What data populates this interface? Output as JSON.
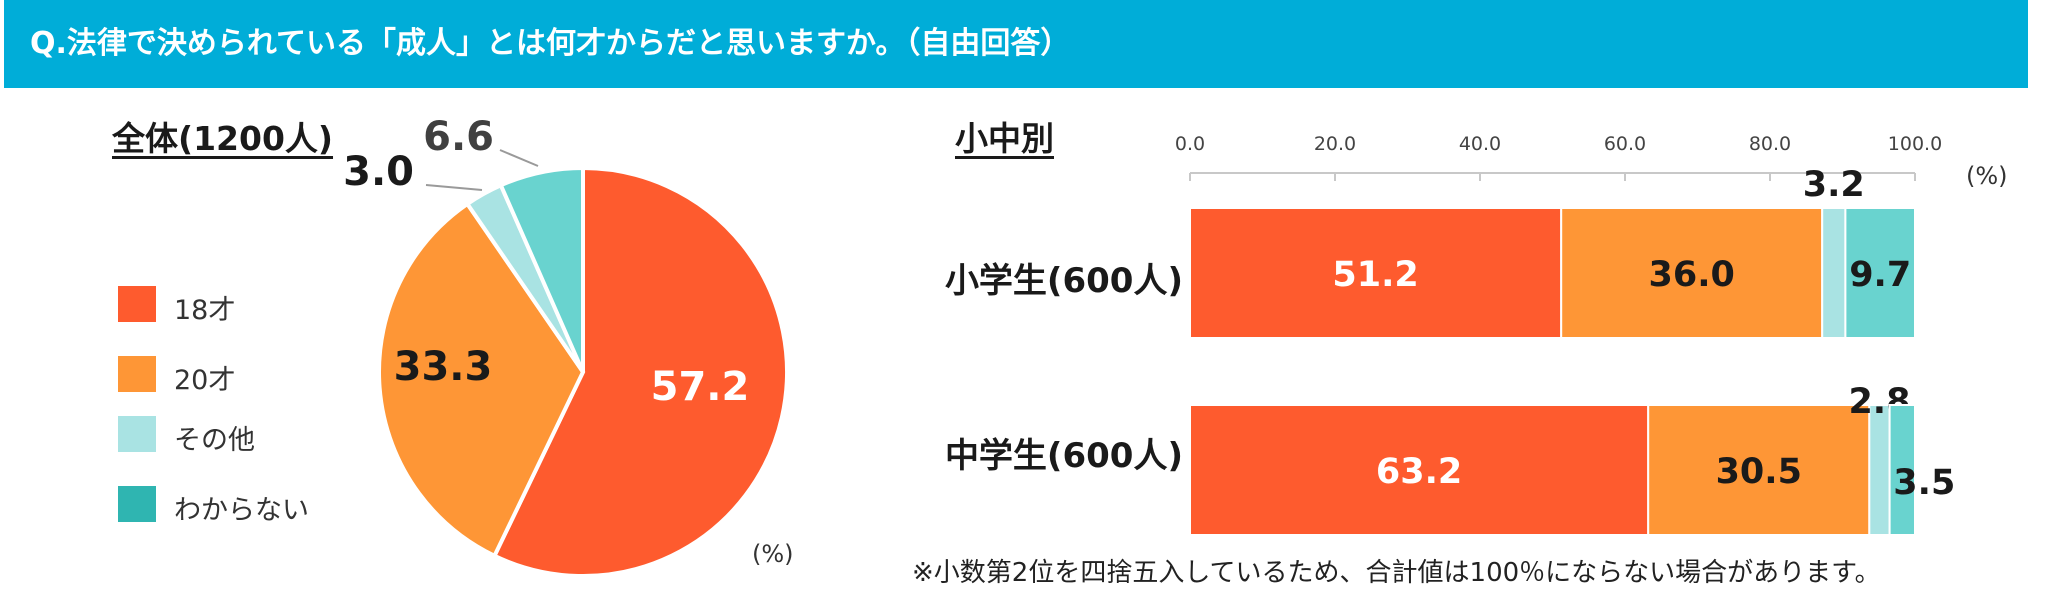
{
  "header": {
    "question": "Q.法律で決められている「成人」とは何才からだと思いますか。（自由回答）"
  },
  "colors": {
    "header_bg": "#00add8",
    "series": [
      "#fe5b2e",
      "#fe9636",
      "#a9e3e3",
      "#69d3cf"
    ],
    "legend": [
      "#fe5b2e",
      "#fe9636",
      "#a9e3e3",
      "#2fb5b1"
    ]
  },
  "note": "※小数第2位を四捨五入しているため、合計値は100％にならない場合があります。",
  "chart_data": [
    {
      "type": "pie",
      "title": "全体(1200人)",
      "unit": "(%)",
      "legend_position": "left",
      "slices": [
        {
          "label": "18才",
          "value": 57.2
        },
        {
          "label": "20才",
          "value": 33.3
        },
        {
          "label": "その他",
          "value": 3.0
        },
        {
          "label": "わからない",
          "value": 6.6
        }
      ],
      "value_labels": [
        "57.2",
        "33.3",
        "3.0",
        "6.6"
      ]
    },
    {
      "type": "bar",
      "orientation": "horizontal",
      "stacked": true,
      "title": "小中別",
      "unit": "(%)",
      "xlim": [
        0,
        100
      ],
      "x_ticks": [
        "0.0",
        "20.0",
        "40.0",
        "60.0",
        "80.0",
        "100.0"
      ],
      "categories": [
        "小学生(600人)",
        "中学生(600人)"
      ],
      "series": [
        {
          "name": "18才",
          "values": [
            51.2,
            63.2
          ],
          "labels": [
            "51.2",
            "63.2"
          ]
        },
        {
          "name": "20才",
          "values": [
            36.0,
            30.5
          ],
          "labels": [
            "36.0",
            "30.5"
          ]
        },
        {
          "name": "その他",
          "values": [
            3.2,
            2.8
          ],
          "labels": [
            "3.2",
            "2.8"
          ]
        },
        {
          "name": "わからない",
          "values": [
            9.7,
            3.5
          ],
          "labels": [
            "9.7",
            "3.5"
          ]
        }
      ]
    }
  ]
}
